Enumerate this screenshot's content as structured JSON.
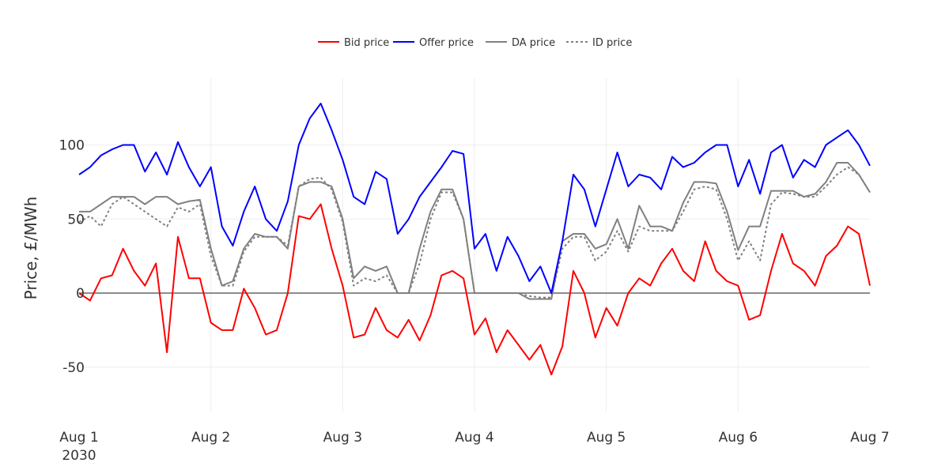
{
  "chart_data": {
    "type": "line",
    "title": "",
    "xlabel": "",
    "ylabel": "Price, £/MWh",
    "ylim": [
      -80,
      145
    ],
    "xlim": [
      "2030-08-01 00:00",
      "2030-08-07 00:00"
    ],
    "yticks": [
      -50,
      0,
      50,
      100
    ],
    "xticks": [
      {
        "value": "2030-08-01 00:00",
        "label": "Aug 1",
        "sublabel": "2030"
      },
      {
        "value": "2030-08-02 00:00",
        "label": "Aug 2"
      },
      {
        "value": "2030-08-03 00:00",
        "label": "Aug 3"
      },
      {
        "value": "2030-08-04 00:00",
        "label": "Aug 4"
      },
      {
        "value": "2030-08-05 00:00",
        "label": "Aug 5"
      },
      {
        "value": "2030-08-06 00:00",
        "label": "Aug 6"
      },
      {
        "value": "2030-08-07 00:00",
        "label": "Aug 7"
      }
    ],
    "grid": true,
    "zero_line": true,
    "legend_placement": "top-center",
    "x": [
      "2030-08-01 00:00",
      "2030-08-01 02:00",
      "2030-08-01 04:00",
      "2030-08-01 06:00",
      "2030-08-01 08:00",
      "2030-08-01 10:00",
      "2030-08-01 12:00",
      "2030-08-01 14:00",
      "2030-08-01 16:00",
      "2030-08-01 18:00",
      "2030-08-01 20:00",
      "2030-08-01 22:00",
      "2030-08-02 00:00",
      "2030-08-02 02:00",
      "2030-08-02 04:00",
      "2030-08-02 06:00",
      "2030-08-02 08:00",
      "2030-08-02 10:00",
      "2030-08-02 12:00",
      "2030-08-02 14:00",
      "2030-08-02 16:00",
      "2030-08-02 18:00",
      "2030-08-02 20:00",
      "2030-08-02 22:00",
      "2030-08-03 00:00",
      "2030-08-03 02:00",
      "2030-08-03 04:00",
      "2030-08-03 06:00",
      "2030-08-03 08:00",
      "2030-08-03 10:00",
      "2030-08-03 12:00",
      "2030-08-03 14:00",
      "2030-08-03 16:00",
      "2030-08-03 18:00",
      "2030-08-03 20:00",
      "2030-08-03 22:00",
      "2030-08-04 00:00",
      "2030-08-04 02:00",
      "2030-08-04 04:00",
      "2030-08-04 06:00",
      "2030-08-04 08:00",
      "2030-08-04 10:00",
      "2030-08-04 12:00",
      "2030-08-04 14:00",
      "2030-08-04 16:00",
      "2030-08-04 18:00",
      "2030-08-04 20:00",
      "2030-08-04 22:00",
      "2030-08-05 00:00",
      "2030-08-05 02:00",
      "2030-08-05 04:00",
      "2030-08-05 06:00",
      "2030-08-05 08:00",
      "2030-08-05 10:00",
      "2030-08-05 12:00",
      "2030-08-05 14:00",
      "2030-08-05 16:00",
      "2030-08-05 18:00",
      "2030-08-05 20:00",
      "2030-08-05 22:00",
      "2030-08-06 00:00",
      "2030-08-06 02:00",
      "2030-08-06 04:00",
      "2030-08-06 06:00",
      "2030-08-06 08:00",
      "2030-08-06 10:00",
      "2030-08-06 12:00",
      "2030-08-06 14:00",
      "2030-08-06 16:00",
      "2030-08-06 18:00",
      "2030-08-06 20:00",
      "2030-08-06 22:00",
      "2030-08-07 00:00"
    ],
    "series": [
      {
        "name": "Bid price",
        "color": "#ff0000",
        "dash": "solid",
        "values": [
          0,
          -5,
          10,
          12,
          30,
          15,
          5,
          20,
          -40,
          38,
          10,
          10,
          -20,
          -25,
          -25,
          3,
          -10,
          -28,
          -25,
          0,
          52,
          50,
          60,
          30,
          5,
          -30,
          -28,
          -10,
          -25,
          -30,
          -18,
          -32,
          -15,
          12,
          15,
          10,
          -28,
          -17,
          -40,
          -25,
          -35,
          -45,
          -35,
          -55,
          -36,
          15,
          0,
          -30,
          -10,
          -22,
          0,
          10,
          5,
          20,
          30,
          15,
          8,
          35,
          15,
          8,
          5,
          -18,
          -15,
          15,
          40,
          20,
          15,
          5,
          25,
          32,
          45,
          40,
          5
        ]
      },
      {
        "name": "Offer price",
        "color": "#0000ff",
        "dash": "solid",
        "values": [
          80,
          85,
          93,
          97,
          100,
          100,
          82,
          95,
          80,
          102,
          85,
          72,
          85,
          45,
          32,
          55,
          72,
          50,
          42,
          62,
          100,
          118,
          128,
          110,
          90,
          65,
          60,
          82,
          77,
          40,
          50,
          65,
          75,
          85,
          96,
          94,
          30,
          40,
          15,
          38,
          25,
          8,
          18,
          0,
          35,
          80,
          70,
          45,
          70,
          95,
          72,
          80,
          78,
          70,
          92,
          85,
          88,
          95,
          100,
          100,
          72,
          90,
          67,
          95,
          100,
          78,
          90,
          85,
          100,
          105,
          110,
          100,
          86
        ]
      },
      {
        "name": "DA price",
        "color": "#808080",
        "dash": "solid",
        "values": [
          55,
          55,
          60,
          65,
          65,
          65,
          60,
          65,
          65,
          60,
          62,
          63,
          30,
          5,
          8,
          30,
          40,
          38,
          38,
          30,
          72,
          75,
          75,
          72,
          50,
          10,
          18,
          15,
          18,
          0,
          0,
          30,
          55,
          70,
          70,
          50,
          0,
          0,
          0,
          0,
          0,
          -4,
          -4,
          -4,
          35,
          40,
          40,
          30,
          33,
          50,
          30,
          59,
          45,
          45,
          42,
          61,
          75,
          75,
          74,
          55,
          29,
          45,
          45,
          69,
          69,
          69,
          65,
          67,
          75,
          88,
          88,
          80,
          68
        ]
      },
      {
        "name": "ID price",
        "color": "#808080",
        "dash": "dotted",
        "values": [
          48,
          52,
          45,
          60,
          65,
          60,
          55,
          50,
          45,
          58,
          55,
          60,
          25,
          5,
          5,
          28,
          38,
          38,
          38,
          32,
          72,
          77,
          78,
          70,
          48,
          5,
          10,
          8,
          12,
          0,
          0,
          20,
          50,
          68,
          68,
          50,
          0,
          0,
          0,
          0,
          0,
          -2,
          -3,
          -3,
          30,
          38,
          38,
          22,
          28,
          42,
          28,
          45,
          42,
          42,
          42,
          55,
          70,
          72,
          70,
          50,
          22,
          35,
          22,
          60,
          68,
          67,
          65,
          65,
          72,
          80,
          85,
          80,
          68
        ]
      }
    ]
  }
}
